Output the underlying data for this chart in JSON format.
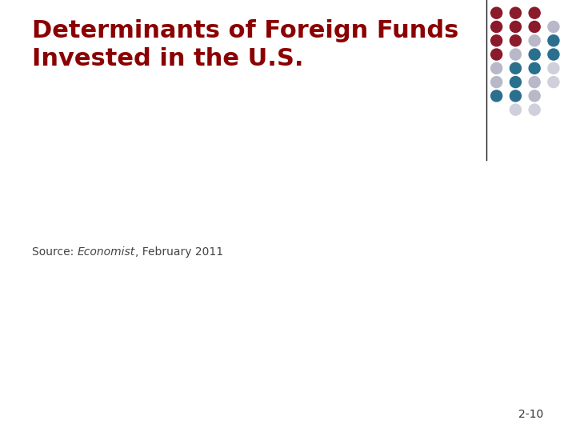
{
  "title_line1": "Determinants of Foreign Funds",
  "title_line2": "Invested in the U.S.",
  "title_color": "#8B0000",
  "title_fontsize": 22,
  "source_text": "Source: ",
  "source_italic": "Economist",
  "source_end": ", February 2011",
  "source_fontsize": 10,
  "source_color": "#444444",
  "page_number": "2-10",
  "page_fontsize": 10,
  "background_color": "#FFFFFF",
  "vline_x_fig": 0.845,
  "dot_colors": {
    "red": "#8B1A2A",
    "blue": "#2B6F8E",
    "gray_light": "#B8B8C8",
    "gray_lighter": "#D0D0DC"
  },
  "dots": [
    {
      "row": 0,
      "col": 0,
      "color": "red"
    },
    {
      "row": 0,
      "col": 1,
      "color": "red"
    },
    {
      "row": 0,
      "col": 2,
      "color": "red"
    },
    {
      "row": 1,
      "col": 0,
      "color": "red"
    },
    {
      "row": 1,
      "col": 1,
      "color": "red"
    },
    {
      "row": 1,
      "col": 2,
      "color": "red"
    },
    {
      "row": 1,
      "col": 3,
      "color": "gray_light"
    },
    {
      "row": 2,
      "col": 0,
      "color": "red"
    },
    {
      "row": 2,
      "col": 1,
      "color": "red"
    },
    {
      "row": 2,
      "col": 2,
      "color": "gray_light"
    },
    {
      "row": 2,
      "col": 3,
      "color": "blue"
    },
    {
      "row": 3,
      "col": 0,
      "color": "red"
    },
    {
      "row": 3,
      "col": 1,
      "color": "gray_light"
    },
    {
      "row": 3,
      "col": 2,
      "color": "blue"
    },
    {
      "row": 3,
      "col": 3,
      "color": "blue"
    },
    {
      "row": 4,
      "col": 0,
      "color": "gray_light"
    },
    {
      "row": 4,
      "col": 1,
      "color": "blue"
    },
    {
      "row": 4,
      "col": 2,
      "color": "blue"
    },
    {
      "row": 4,
      "col": 3,
      "color": "gray_lighter"
    },
    {
      "row": 5,
      "col": 0,
      "color": "gray_light"
    },
    {
      "row": 5,
      "col": 1,
      "color": "blue"
    },
    {
      "row": 5,
      "col": 2,
      "color": "gray_light"
    },
    {
      "row": 5,
      "col": 3,
      "color": "gray_lighter"
    },
    {
      "row": 6,
      "col": 0,
      "color": "blue"
    },
    {
      "row": 6,
      "col": 1,
      "color": "blue"
    },
    {
      "row": 6,
      "col": 2,
      "color": "gray_light"
    },
    {
      "row": 7,
      "col": 1,
      "color": "gray_lighter"
    },
    {
      "row": 7,
      "col": 2,
      "color": "gray_lighter"
    }
  ]
}
